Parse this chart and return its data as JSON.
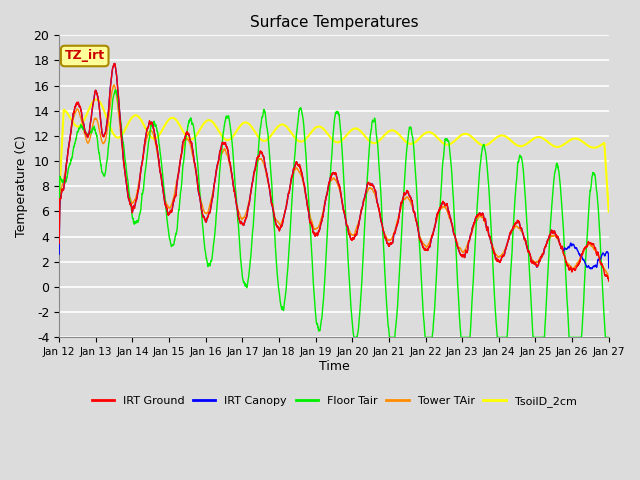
{
  "title": "Surface Temperatures",
  "xlabel": "Time",
  "ylabel": "Temperature (C)",
  "ylim": [
    -4,
    20
  ],
  "background_color": "#dcdcdc",
  "plot_bg_color": "#dcdcdc",
  "grid_color": "#ffffff",
  "series": {
    "IRT_Ground": {
      "color": "#ff0000",
      "lw": 1.0,
      "label": "IRT Ground",
      "zorder": 5
    },
    "IRT_Canopy": {
      "color": "#0000ff",
      "lw": 1.0,
      "label": "IRT Canopy",
      "zorder": 4
    },
    "Floor_Tair": {
      "color": "#00ee00",
      "lw": 1.0,
      "label": "Floor Tair",
      "zorder": 3
    },
    "Tower_TAir": {
      "color": "#ff8c00",
      "lw": 1.0,
      "label": "Tower TAir",
      "zorder": 2
    },
    "TsoilD_2cm": {
      "color": "#ffff00",
      "lw": 1.5,
      "label": "TsoilD_2cm",
      "zorder": 1
    }
  },
  "xtick_labels": [
    "Jan 12",
    "Jan 13",
    "Jan 14",
    "Jan 15",
    "Jan 16",
    "Jan 17",
    "Jan 18",
    "Jan 19",
    "Jan 20",
    "Jan 21",
    "Jan 22",
    "Jan 23",
    "Jan 24",
    "Jan 25",
    "Jan 26",
    "Jan 27"
  ],
  "annotation": {
    "text": "TZ_irt",
    "color": "#cc0000",
    "bg": "#ffff99",
    "edgecolor": "#aa8800"
  },
  "figsize": [
    6.4,
    4.8
  ],
  "dpi": 100
}
